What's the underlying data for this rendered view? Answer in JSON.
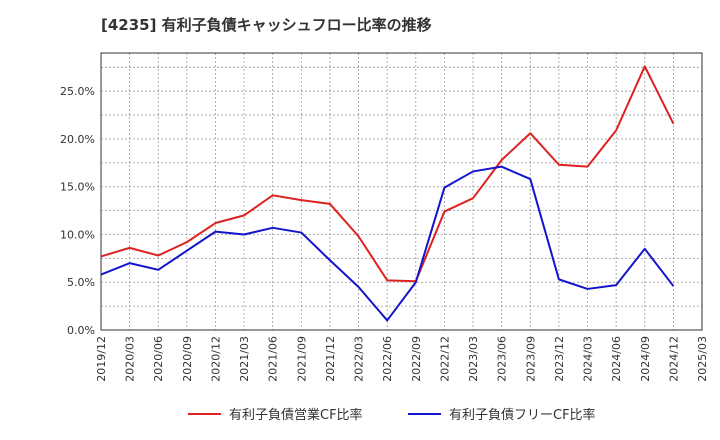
{
  "chart_data": {
    "type": "line",
    "title": "[4235]  有利子負債キャッシュフロー比率の推移",
    "xlabel": "",
    "ylabel": "",
    "x": [
      "2019/12",
      "2020/03",
      "2020/06",
      "2020/09",
      "2020/12",
      "2021/03",
      "2021/06",
      "2021/09",
      "2021/12",
      "2022/03",
      "2022/06",
      "2022/09",
      "2022/12",
      "2023/03",
      "2023/06",
      "2023/09",
      "2023/12",
      "2024/03",
      "2024/06",
      "2024/09",
      "2024/12"
    ],
    "x_ticks": [
      "2019/12",
      "2020/03",
      "2020/06",
      "2020/09",
      "2020/12",
      "2021/03",
      "2021/06",
      "2021/09",
      "2021/12",
      "2022/03",
      "2022/06",
      "2022/09",
      "2022/12",
      "2023/03",
      "2023/06",
      "2023/09",
      "2023/12",
      "2024/03",
      "2024/06",
      "2024/09",
      "2024/12",
      "2025/03"
    ],
    "ylim": [
      0,
      29
    ],
    "y_ticks": [
      0,
      5,
      10,
      15,
      20,
      25
    ],
    "y_tick_labels": [
      "0.0%",
      "5.0%",
      "10.0%",
      "15.0%",
      "20.0%",
      "25.0%"
    ],
    "grid": true,
    "legend_position": "bottom",
    "series": [
      {
        "name": "有利子負債営業CF比率",
        "color": "#dd2222",
        "values": [
          7.7,
          8.6,
          7.8,
          9.2,
          11.2,
          12.0,
          14.1,
          13.6,
          13.2,
          9.8,
          5.2,
          5.1,
          12.4,
          13.8,
          17.8,
          20.6,
          17.3,
          17.1,
          20.9,
          27.6,
          21.6
        ]
      },
      {
        "name": "有利子負債フリーCF比率",
        "color": "#1414cc",
        "values": [
          5.8,
          7.0,
          6.3,
          8.3,
          10.3,
          10.0,
          10.7,
          10.2,
          7.3,
          4.5,
          1.0,
          5.0,
          14.9,
          16.6,
          17.1,
          15.8,
          5.3,
          4.3,
          4.7,
          8.5,
          4.6
        ]
      }
    ]
  }
}
